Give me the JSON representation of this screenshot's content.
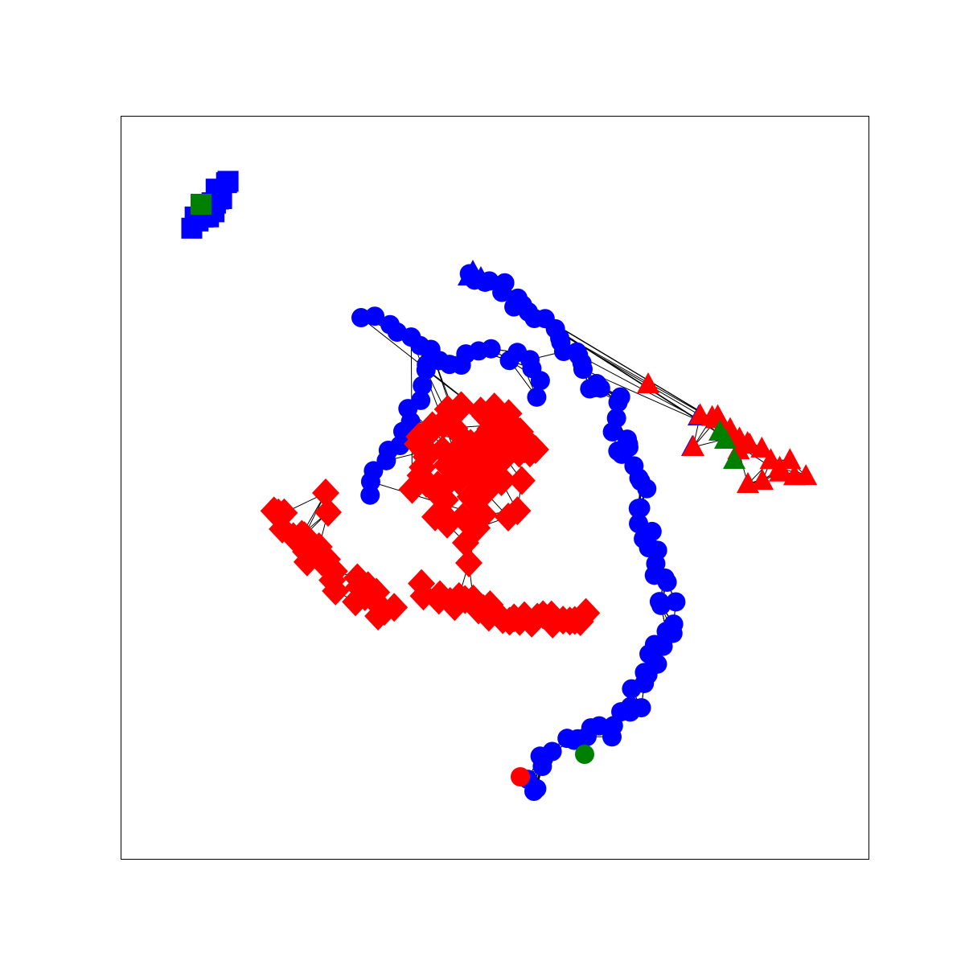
{
  "figure": {
    "type": "network-graph",
    "frame": true,
    "ticks": false,
    "edge_color": "#000000"
  },
  "palette": {
    "red": "#ff0000",
    "blue": "#0000ff",
    "green": "#008000"
  },
  "node_shapes": [
    "square",
    "circle",
    "triangle",
    "diamond"
  ],
  "groups": [
    {
      "name": "square-cluster",
      "shape": "square",
      "colors": [
        "blue",
        "green"
      ],
      "edges": "none"
    },
    {
      "name": "circle-cluster",
      "shape": "circle",
      "colors": [
        "blue",
        "red",
        "green"
      ],
      "edges": "dense"
    },
    {
      "name": "triangle-cluster",
      "shape": "triangle",
      "colors": [
        "red",
        "blue",
        "green"
      ],
      "edges": "dense"
    },
    {
      "name": "diamond-cluster",
      "shape": "diamond",
      "colors": [
        "red"
      ],
      "edges": "dense"
    }
  ]
}
